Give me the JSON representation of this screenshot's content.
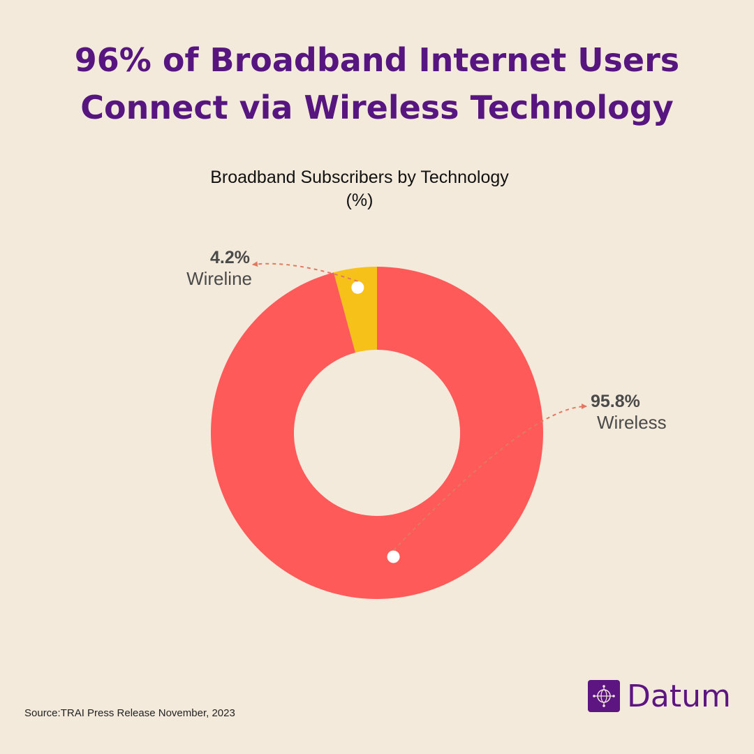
{
  "title": {
    "line1": "96% of Broadband Internet Users",
    "line2": "Connect via Wireless Technology"
  },
  "source": "Source:TRAI Press Release November, 2023",
  "brand": {
    "name": "Datum",
    "icon": "globe-network-icon",
    "color": "#5D1582"
  },
  "chart_data": {
    "type": "pie",
    "variant": "donut",
    "title": "Broadband Subscribers by Technology",
    "unit": "(%)",
    "slices": [
      {
        "label": "Wireline",
        "value": 4.2,
        "value_label": "4.2%",
        "color": "#F6C118"
      },
      {
        "label": "Wireless",
        "value": 95.8,
        "value_label": "95.8%",
        "color": "#FF5A5A"
      }
    ],
    "start_angle_deg": 0,
    "direction": "counterclockwise",
    "legend": "none"
  }
}
